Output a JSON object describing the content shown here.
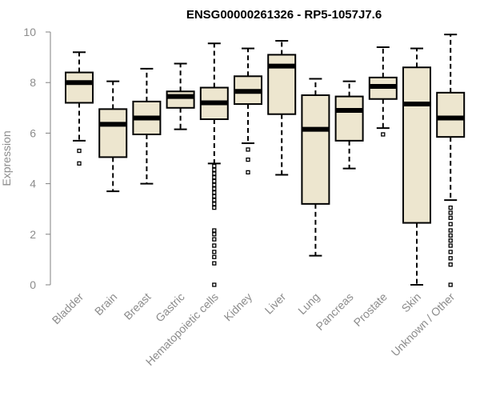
{
  "colors": {
    "box_fill": "#ede6cf",
    "stroke": "#000000",
    "axis": "#808080",
    "text": "#8c8c8c"
  },
  "chart_data": {
    "type": "boxplot",
    "title": "ENSG00000261326 - RP5-1057J7.6",
    "xlabel": "",
    "ylabel": "Expression",
    "ylim": [
      0,
      10
    ],
    "yticks": [
      0,
      2,
      4,
      6,
      8,
      10
    ],
    "categories": [
      "Bladder",
      "Brain",
      "Breast",
      "Gastric",
      "Hematopoietic cells",
      "Kidney",
      "Liver",
      "Lung",
      "Pancreas",
      "Prostate",
      "Skin",
      "Unknown / Other"
    ],
    "boxes": [
      {
        "whisker_low": 5.7,
        "q1": 7.2,
        "median": 8.0,
        "q3": 8.4,
        "whisker_high": 9.2,
        "outliers": [
          5.3,
          4.8
        ]
      },
      {
        "whisker_low": 3.7,
        "q1": 5.05,
        "median": 6.35,
        "q3": 6.95,
        "whisker_high": 8.05,
        "outliers": []
      },
      {
        "whisker_low": 4.0,
        "q1": 5.95,
        "median": 6.6,
        "q3": 7.25,
        "whisker_high": 8.55,
        "outliers": []
      },
      {
        "whisker_low": 6.15,
        "q1": 7.0,
        "median": 7.45,
        "q3": 7.65,
        "whisker_high": 8.75,
        "outliers": []
      },
      {
        "whisker_low": 4.8,
        "q1": 6.55,
        "median": 7.2,
        "q3": 7.8,
        "whisker_high": 9.55,
        "outliers": [
          4.7,
          4.55,
          4.4,
          4.25,
          4.1,
          3.95,
          3.8,
          3.65,
          3.5,
          3.35,
          3.2,
          3.05,
          2.15,
          2.0,
          1.8,
          1.55,
          1.3,
          1.1,
          0.85,
          0.0
        ]
      },
      {
        "whisker_low": 5.6,
        "q1": 7.15,
        "median": 7.65,
        "q3": 8.25,
        "whisker_high": 9.35,
        "outliers": [
          5.35,
          4.95,
          4.45
        ]
      },
      {
        "whisker_low": 4.35,
        "q1": 6.75,
        "median": 8.65,
        "q3": 9.1,
        "whisker_high": 9.65,
        "outliers": []
      },
      {
        "whisker_low": 1.15,
        "q1": 3.2,
        "median": 6.15,
        "q3": 7.5,
        "whisker_high": 8.15,
        "outliers": []
      },
      {
        "whisker_low": 4.6,
        "q1": 5.7,
        "median": 6.9,
        "q3": 7.45,
        "whisker_high": 8.05,
        "outliers": []
      },
      {
        "whisker_low": 6.2,
        "q1": 7.35,
        "median": 7.85,
        "q3": 8.2,
        "whisker_high": 9.4,
        "outliers": [
          5.95
        ]
      },
      {
        "whisker_low": 0.0,
        "q1": 2.45,
        "median": 7.15,
        "q3": 8.6,
        "whisker_high": 9.35,
        "outliers": []
      },
      {
        "whisker_low": 3.35,
        "q1": 5.85,
        "median": 6.6,
        "q3": 7.6,
        "whisker_high": 9.9,
        "outliers": [
          3.05,
          2.85,
          2.65,
          2.4,
          2.15,
          1.95,
          1.75,
          1.55,
          1.3,
          1.05,
          0.8,
          0.0
        ]
      }
    ]
  }
}
